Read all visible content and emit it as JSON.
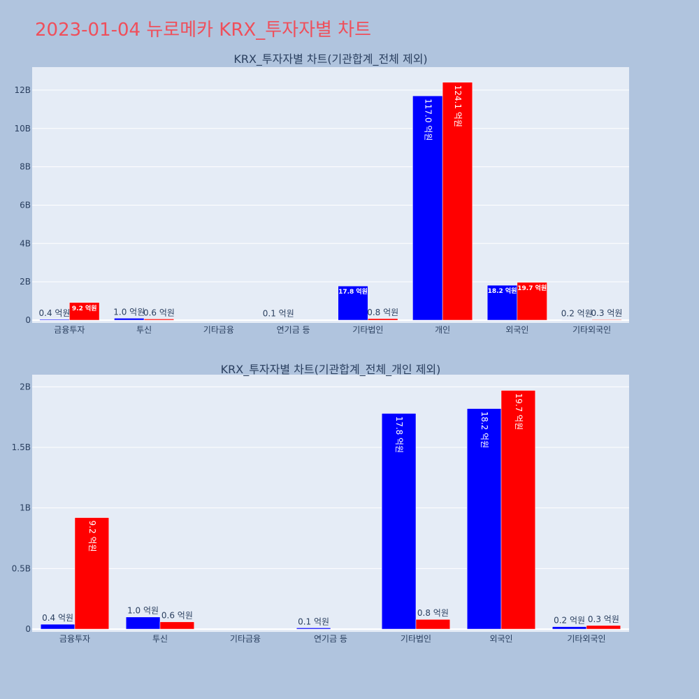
{
  "page": {
    "title": "2023-01-04 뉴로메카 KRX_투자자별 차트"
  },
  "chart_data": [
    {
      "type": "bar",
      "title": "KRX_투자자별 차트(기관합계_전체 제외)",
      "categories": [
        "금융투자",
        "투신",
        "기타금융",
        "연기금 등",
        "기타법인",
        "개인",
        "외국인",
        "기타외국인"
      ],
      "ylim": [
        0,
        13200000000
      ],
      "yticks": [
        0,
        2000000000,
        4000000000,
        6000000000,
        8000000000,
        10000000000,
        12000000000
      ],
      "ytick_labels": [
        "0",
        "2B",
        "4B",
        "6B",
        "8B",
        "10B",
        "12B"
      ],
      "grid": true,
      "colors": [
        "#0000ff",
        "#ff0000"
      ],
      "series": [
        {
          "values": [
            40000000,
            100000000,
            0,
            10000000,
            1780000000,
            11700000000,
            1820000000,
            20000000
          ],
          "labels": [
            "0.4 억원",
            "1.0 억원",
            "",
            "0.1 억원",
            "17.8 억원",
            "117.0 억원",
            "18.2 억원",
            "0.2 억원"
          ]
        },
        {
          "values": [
            920000000,
            60000000,
            0,
            0,
            80000000,
            12410000000,
            1970000000,
            30000000
          ],
          "labels": [
            "9.2 억원",
            "0.6 억원",
            "",
            "",
            "0.8 억원",
            "124.1 억원",
            "19.7 억원",
            "0.3 억원"
          ]
        }
      ]
    },
    {
      "type": "bar",
      "title": "KRX_투자자별 차트(기관합계_전체_개인 제외)",
      "categories": [
        "금융투자",
        "투신",
        "기타금융",
        "연기금 등",
        "기타법인",
        "외국인",
        "기타외국인"
      ],
      "ylim": [
        0,
        2100000000
      ],
      "yticks": [
        0,
        500000000,
        1000000000,
        1500000000,
        2000000000
      ],
      "ytick_labels": [
        "0",
        "0.5B",
        "1B",
        "1.5B",
        "2B"
      ],
      "grid": true,
      "colors": [
        "#0000ff",
        "#ff0000"
      ],
      "series": [
        {
          "values": [
            40000000,
            100000000,
            0,
            10000000,
            1780000000,
            1820000000,
            20000000
          ],
          "labels": [
            "0.4 억원",
            "1.0 억원",
            "",
            "0.1 억원",
            "17.8 억원",
            "18.2 억원",
            "0.2 억원"
          ]
        },
        {
          "values": [
            920000000,
            60000000,
            0,
            0,
            80000000,
            1970000000,
            30000000
          ],
          "labels": [
            "9.2 억원",
            "0.6 억원",
            "",
            "",
            "0.8 억원",
            "19.7 억원",
            "0.3 억원"
          ]
        }
      ]
    }
  ]
}
